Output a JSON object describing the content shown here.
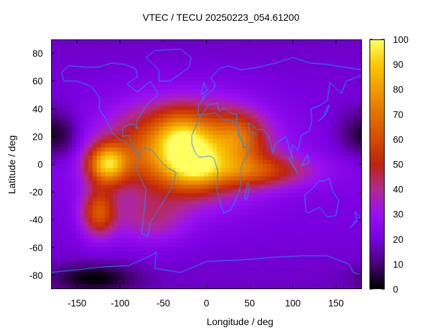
{
  "chart_data": {
    "type": "heatmap",
    "title": "VTEC / TECU 20250223_054.61200",
    "xlabel": "Longitude / deg",
    "ylabel": "Latitude / deg",
    "xlim": [
      -180,
      180
    ],
    "ylim": [
      -90,
      90
    ],
    "x_ticks": [
      -150,
      -100,
      -50,
      0,
      50,
      100,
      150
    ],
    "y_ticks": [
      -80,
      -60,
      -40,
      -20,
      0,
      20,
      40,
      60,
      80
    ],
    "colorbar": {
      "min": 0,
      "max": 100,
      "ticks": [
        0,
        10,
        20,
        30,
        40,
        50,
        60,
        70,
        80,
        90,
        100
      ],
      "colormap": "black-purple-red-orange-yellow"
    },
    "colormap_stops": [
      {
        "value": 0,
        "color": "#000000"
      },
      {
        "value": 10,
        "color": "#4a007a"
      },
      {
        "value": 20,
        "color": "#7a00e0"
      },
      {
        "value": 30,
        "color": "#9a10f2"
      },
      {
        "value": 40,
        "color": "#b02a8e"
      },
      {
        "value": 50,
        "color": "#c0240f"
      },
      {
        "value": 60,
        "color": "#d44a00"
      },
      {
        "value": 70,
        "color": "#e27000"
      },
      {
        "value": 80,
        "color": "#f09a00"
      },
      {
        "value": 90,
        "color": "#f8c800"
      },
      {
        "value": 100,
        "color": "#ffff60"
      }
    ],
    "background_vtec": 22,
    "features": [
      {
        "lon": -25,
        "lat": 10,
        "peak": 68,
        "sigma_lon": 55,
        "sigma_lat": 22
      },
      {
        "lon": -15,
        "lat": 0,
        "peak": 25,
        "sigma_lon": 20,
        "sigma_lat": 12
      },
      {
        "lon": -30,
        "lat": 20,
        "peak": 18,
        "sigma_lon": 18,
        "sigma_lat": 12
      },
      {
        "lon": -115,
        "lat": 0,
        "peak": 58,
        "sigma_lon": 16,
        "sigma_lat": 10
      },
      {
        "lon": -125,
        "lat": -35,
        "peak": 40,
        "sigma_lon": 14,
        "sigma_lat": 12
      },
      {
        "lon": 60,
        "lat": -5,
        "peak": 28,
        "sigma_lon": 45,
        "sigma_lat": 8
      },
      {
        "lon": 40,
        "lat": 20,
        "peak": 22,
        "sigma_lon": 20,
        "sigma_lat": 12
      },
      {
        "lon": -65,
        "lat": -40,
        "peak": 18,
        "sigma_lon": 30,
        "sigma_lat": 12
      },
      {
        "lon": -130,
        "lat": -82,
        "peak": -18,
        "sigma_lon": 35,
        "sigma_lat": 7
      },
      {
        "lon": 175,
        "lat": 22,
        "peak": -12,
        "sigma_lon": 18,
        "sigma_lat": 12
      },
      {
        "lon": -165,
        "lat": 20,
        "peak": -10,
        "sigma_lon": 15,
        "sigma_lat": 12
      }
    ],
    "coastline_color": "#1e90ff"
  }
}
